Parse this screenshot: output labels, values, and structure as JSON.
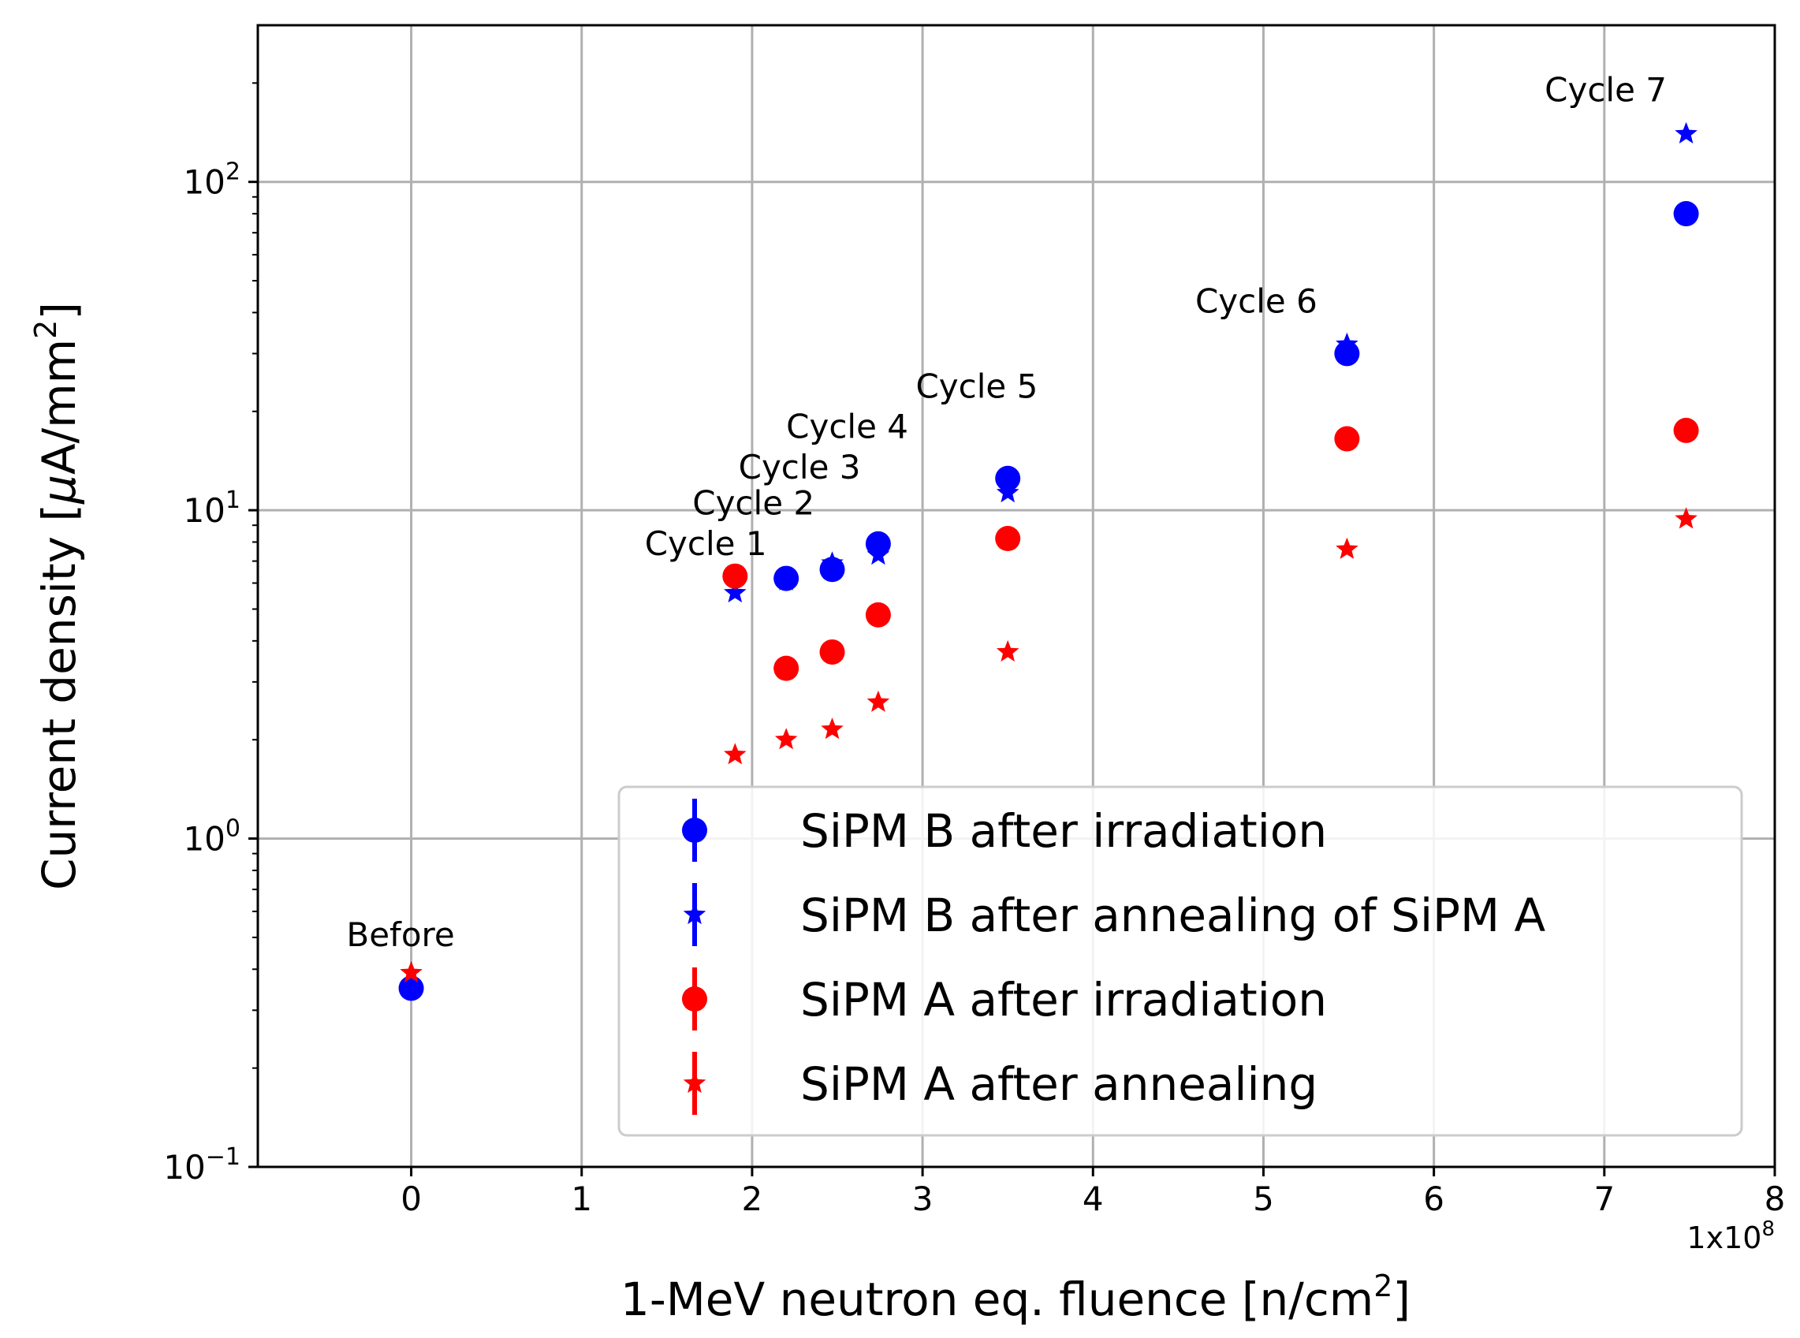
{
  "chart_data": {
    "type": "scatter",
    "yscale": "log",
    "xlim": [
      -0.9,
      8.0
    ],
    "ylim": [
      0.1,
      300
    ],
    "grid": true,
    "xlabel": "1-MeV neutron eq. fluence [n/cm",
    "xlabel_sup": "2",
    "xlabel_end": "]",
    "ylabel_pre": "Current density [",
    "ylabel_mu": "μ",
    "ylabel_mid": "A/mm",
    "ylabel_sup": "2",
    "ylabel_end": "]",
    "x_multiplier": {
      "base": "1x10",
      "exp": "8"
    },
    "x_ticks": [
      {
        "v": 0,
        "label": "0"
      },
      {
        "v": 1,
        "label": "1"
      },
      {
        "v": 2,
        "label": "2"
      },
      {
        "v": 3,
        "label": "3"
      },
      {
        "v": 4,
        "label": "4"
      },
      {
        "v": 5,
        "label": "5"
      },
      {
        "v": 6,
        "label": "6"
      },
      {
        "v": 7,
        "label": "7"
      },
      {
        "v": 8,
        "label": "8"
      }
    ],
    "y_ticks": [
      {
        "v": 0.1,
        "base": "10",
        "exp": "−1"
      },
      {
        "v": 1,
        "base": "10",
        "exp": "0"
      },
      {
        "v": 10,
        "base": "10",
        "exp": "1"
      },
      {
        "v": 100,
        "base": "10",
        "exp": "2"
      }
    ],
    "series": [
      {
        "name": "SiPM B after irradiation",
        "marker": "circle",
        "color": "#0000ff",
        "x": [
          0.0,
          2.2,
          2.47,
          2.74,
          3.5,
          5.49,
          7.48
        ],
        "y": [
          0.35,
          6.2,
          6.6,
          7.9,
          12.5,
          30.0,
          80.0
        ]
      },
      {
        "name": "SiPM B after annealing of SiPM A",
        "marker": "star",
        "color": "#0000ff",
        "x": [
          1.9,
          2.2,
          2.47,
          2.74,
          3.5,
          5.49,
          7.48
        ],
        "y": [
          5.6,
          6.1,
          6.9,
          7.3,
          11.3,
          32.0,
          140.0
        ]
      },
      {
        "name": "SiPM A after irradiation",
        "marker": "circle",
        "color": "#ff0000",
        "x": [
          1.9,
          2.2,
          2.47,
          2.74,
          3.5,
          5.49,
          7.48
        ],
        "y": [
          6.3,
          3.3,
          3.7,
          4.8,
          8.2,
          16.5,
          17.5
        ]
      },
      {
        "name": "SiPM A after annealing",
        "marker": "star",
        "color": "#ff0000",
        "x": [
          0.0,
          1.9,
          2.2,
          2.47,
          2.74,
          3.5,
          5.49,
          7.48
        ],
        "y": [
          0.39,
          1.8,
          2.0,
          2.15,
          2.6,
          3.7,
          7.6,
          9.4
        ]
      }
    ],
    "annotations": [
      {
        "text": "Before",
        "x": -0.38,
        "y": 0.47
      },
      {
        "text": "Cycle 1",
        "x": 1.37,
        "y": 7.3
      },
      {
        "text": "Cycle 2",
        "x": 1.65,
        "y": 9.7
      },
      {
        "text": "Cycle 3",
        "x": 1.92,
        "y": 12.5
      },
      {
        "text": "Cycle 4",
        "x": 2.2,
        "y": 16.6
      },
      {
        "text": "Cycle 5",
        "x": 2.96,
        "y": 22.0
      },
      {
        "text": "Cycle 6",
        "x": 4.6,
        "y": 40.0
      },
      {
        "text": "Cycle 7",
        "x": 6.65,
        "y": 176.0
      }
    ],
    "legend_position": "lower right"
  }
}
